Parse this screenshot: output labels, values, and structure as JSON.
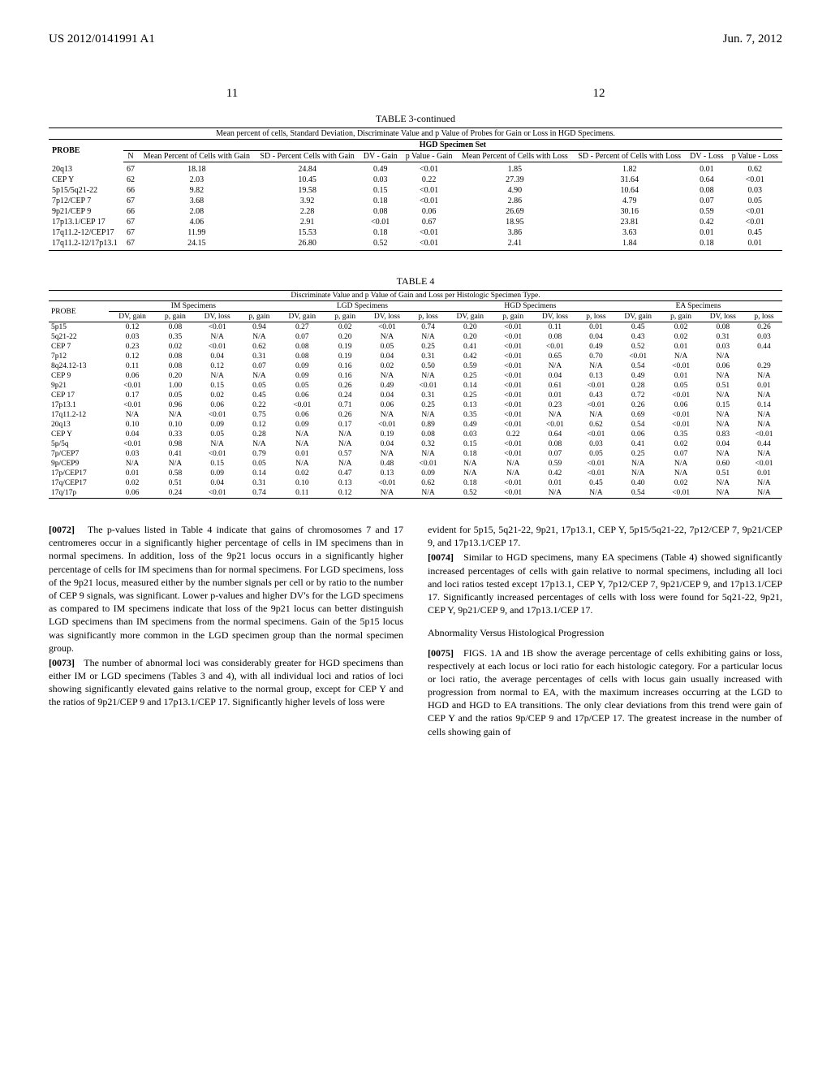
{
  "header": {
    "left": "US 2012/0141991 A1",
    "right": "Jun. 7, 2012"
  },
  "page_left": "11",
  "page_right": "12",
  "table3": {
    "caption": "TABLE 3-continued",
    "subcaption": "Mean percent of cells, Standard Deviation, Discriminate Value and p Value of Probes for Gain or Loss in HGD Specimens.",
    "group_header": "HGD Specimen Set",
    "cols": [
      "PROBE",
      "N",
      "Mean Percent of Cells with Gain",
      "SD - Percent Cells with Gain",
      "DV - Gain",
      "p Value - Gain",
      "Mean Percent of Cells with Loss",
      "SD - Percent of Cells with Loss",
      "DV - Loss",
      "p Value - Loss"
    ],
    "rows": [
      [
        "20q13",
        "67",
        "18.18",
        "24.84",
        "0.49",
        "<0.01",
        "1.85",
        "1.82",
        "0.01",
        "0.62"
      ],
      [
        "CEP Y",
        "62",
        "2.03",
        "10.45",
        "0.03",
        "0.22",
        "27.39",
        "31.64",
        "0.64",
        "<0.01"
      ],
      [
        "5p15/5q21-22",
        "66",
        "9.82",
        "19.58",
        "0.15",
        "<0.01",
        "4.90",
        "10.64",
        "0.08",
        "0.03"
      ],
      [
        "7p12/CEP 7",
        "67",
        "3.68",
        "3.92",
        "0.18",
        "<0.01",
        "2.86",
        "4.79",
        "0.07",
        "0.05"
      ],
      [
        "9p21/CEP 9",
        "66",
        "2.08",
        "2.28",
        "0.08",
        "0.06",
        "26.69",
        "30.16",
        "0.59",
        "<0.01"
      ],
      [
        "17p13.1/CEP 17",
        "67",
        "4.06",
        "2.91",
        "<0.01",
        "0.67",
        "18.95",
        "23.81",
        "0.42",
        "<0.01"
      ],
      [
        "17q11.2-12/CEP17",
        "67",
        "11.99",
        "15.53",
        "0.18",
        "<0.01",
        "3.86",
        "3.63",
        "0.01",
        "0.45"
      ],
      [
        "17q11.2-12/17p13.1",
        "67",
        "24.15",
        "26.80",
        "0.52",
        "<0.01",
        "2.41",
        "1.84",
        "0.18",
        "0.01"
      ]
    ]
  },
  "table4": {
    "caption": "TABLE 4",
    "subcaption": "Discriminate Value and p Value of Gain and Loss per Histologic Specimen Type.",
    "groups": [
      "IM Specimens",
      "LGD Specimens",
      "HGD Specimens",
      "EA Specimens"
    ],
    "subcols": [
      "DV, gain",
      "p, gain",
      "DV, loss",
      "p, gain",
      "DV, gain",
      "p, gain",
      "DV, loss",
      "p, loss",
      "DV, gain",
      "p, gain",
      "DV, loss",
      "p, loss",
      "DV, gain",
      "p, gain",
      "DV, loss",
      "p, loss"
    ],
    "probe_label": "PROBE",
    "rows": [
      [
        "5p15",
        "0.12",
        "0.08",
        "<0.01",
        "0.94",
        "0.27",
        "0.02",
        "<0.01",
        "0.74",
        "0.20",
        "<0.01",
        "0.11",
        "0.01",
        "0.45",
        "0.02",
        "0.08",
        "0.26"
      ],
      [
        "5q21-22",
        "0.03",
        "0.35",
        "N/A",
        "N/A",
        "0.07",
        "0.20",
        "N/A",
        "N/A",
        "0.20",
        "<0.01",
        "0.08",
        "0.04",
        "0.43",
        "0.02",
        "0.31",
        "0.03"
      ],
      [
        "CEP 7",
        "0.23",
        "0.02",
        "<0.01",
        "0.62",
        "0.08",
        "0.19",
        "0.05",
        "0.25",
        "0.41",
        "<0.01",
        "<0.01",
        "0.49",
        "0.52",
        "0.01",
        "0.03",
        "0.44"
      ],
      [
        "7p12",
        "0.12",
        "0.08",
        "0.04",
        "0.31",
        "0.08",
        "0.19",
        "0.04",
        "0.31",
        "0.42",
        "<0.01",
        "0.65",
        "0.70",
        "<0.01",
        "N/A",
        "N/A",
        ""
      ],
      [
        "8q24.12-13",
        "0.11",
        "0.08",
        "0.12",
        "0.07",
        "0.09",
        "0.16",
        "0.02",
        "0.50",
        "0.59",
        "<0.01",
        "N/A",
        "N/A",
        "0.54",
        "<0.01",
        "0.06",
        "0.29"
      ],
      [
        "CEP 9",
        "0.06",
        "0.20",
        "N/A",
        "N/A",
        "0.09",
        "0.16",
        "N/A",
        "N/A",
        "0.25",
        "<0.01",
        "0.04",
        "0.13",
        "0.49",
        "0.01",
        "N/A",
        "N/A"
      ],
      [
        "9p21",
        "<0.01",
        "1.00",
        "0.15",
        "0.05",
        "0.05",
        "0.26",
        "0.49",
        "<0.01",
        "0.14",
        "<0.01",
        "0.61",
        "<0.01",
        "0.28",
        "0.05",
        "0.51",
        "0.01"
      ],
      [
        "CEP 17",
        "0.17",
        "0.05",
        "0.02",
        "0.45",
        "0.06",
        "0.24",
        "0.04",
        "0.31",
        "0.25",
        "<0.01",
        "0.01",
        "0.43",
        "0.72",
        "<0.01",
        "N/A",
        "N/A"
      ],
      [
        "17p13.1",
        "<0.01",
        "0.96",
        "0.06",
        "0.22",
        "<0.01",
        "0.71",
        "0.06",
        "0.25",
        "0.13",
        "<0.01",
        "0.23",
        "<0.01",
        "0.26",
        "0.06",
        "0.15",
        "0.14"
      ],
      [
        "17q11.2-12",
        "N/A",
        "N/A",
        "<0.01",
        "0.75",
        "0.06",
        "0.26",
        "N/A",
        "N/A",
        "0.35",
        "<0.01",
        "N/A",
        "N/A",
        "0.69",
        "<0.01",
        "N/A",
        "N/A"
      ],
      [
        "20q13",
        "0.10",
        "0.10",
        "0.09",
        "0.12",
        "0.09",
        "0.17",
        "<0.01",
        "0.89",
        "0.49",
        "<0.01",
        "<0.01",
        "0.62",
        "0.54",
        "<0.01",
        "N/A",
        "N/A"
      ],
      [
        "CEP Y",
        "0.04",
        "0.33",
        "0.05",
        "0.28",
        "N/A",
        "N/A",
        "0.19",
        "0.08",
        "0.03",
        "0.22",
        "0.64",
        "<0.01",
        "0.06",
        "0.35",
        "0.83",
        "<0.01"
      ],
      [
        "5p/5q",
        "<0.01",
        "0.98",
        "N/A",
        "N/A",
        "N/A",
        "N/A",
        "0.04",
        "0.32",
        "0.15",
        "<0.01",
        "0.08",
        "0.03",
        "0.41",
        "0.02",
        "0.04",
        "0.44"
      ],
      [
        "7p/CEP7",
        "0.03",
        "0.41",
        "<0.01",
        "0.79",
        "0.01",
        "0.57",
        "N/A",
        "N/A",
        "0.18",
        "<0.01",
        "0.07",
        "0.05",
        "0.25",
        "0.07",
        "N/A",
        "N/A"
      ],
      [
        "9p/CEP9",
        "N/A",
        "N/A",
        "0.15",
        "0.05",
        "N/A",
        "N/A",
        "0.48",
        "<0.01",
        "N/A",
        "N/A",
        "0.59",
        "<0.01",
        "N/A",
        "N/A",
        "0.60",
        "<0.01"
      ],
      [
        "17p/CEP17",
        "0.01",
        "0.58",
        "0.09",
        "0.14",
        "0.02",
        "0.47",
        "0.13",
        "0.09",
        "N/A",
        "N/A",
        "0.42",
        "<0.01",
        "N/A",
        "N/A",
        "0.51",
        "0.01"
      ],
      [
        "17q/CEP17",
        "0.02",
        "0.51",
        "0.04",
        "0.31",
        "0.10",
        "0.13",
        "<0.01",
        "0.62",
        "0.18",
        "<0.01",
        "0.01",
        "0.45",
        "0.40",
        "0.02",
        "N/A",
        "N/A"
      ],
      [
        "17q/17p",
        "0.06",
        "0.24",
        "<0.01",
        "0.74",
        "0.11",
        "0.12",
        "N/A",
        "N/A",
        "0.52",
        "<0.01",
        "N/A",
        "N/A",
        "0.54",
        "<0.01",
        "N/A",
        "N/A"
      ]
    ]
  },
  "body": {
    "p72_num": "[0072]",
    "p72": "The p-values listed in Table 4 indicate that gains of chromosomes 7 and 17 centromeres occur in a significantly higher percentage of cells in IM specimens than in normal specimens. In addition, loss of the 9p21 locus occurs in a significantly higher percentage of cells for IM specimens than for normal specimens. For LGD specimens, loss of the 9p21 locus, measured either by the number signals per cell or by ratio to the number of CEP 9 signals, was significant. Lower p-values and higher DV's for the LGD specimens as compared to IM specimens indicate that loss of the 9p21 locus can better distinguish LGD specimens than IM specimens from the normal specimens. Gain of the 5p15 locus was significantly more common in the LGD specimen group than the normal specimen group.",
    "p73_num": "[0073]",
    "p73": "The number of abnormal loci was considerably greater for HGD specimens than either IM or LGD specimens (Tables 3 and 4), with all individual loci and ratios of loci showing significantly elevated gains relative to the normal group, except for CEP Y and the ratios of 9p21/CEP 9 and 17p13.1/CEP 17. Significantly higher levels of loss were",
    "p73b": "evident for 5p15, 5q21-22, 9p21, 17p13.1, CEP Y, 5p15/5q21-22, 7p12/CEP 7, 9p21/CEP 9, and 17p13.1/CEP 17.",
    "p74_num": "[0074]",
    "p74": "Similar to HGD specimens, many EA specimens (Table 4) showed significantly increased percentages of cells with gain relative to normal specimens, including all loci and loci ratios tested except 17p13.1, CEP Y, 7p12/CEP 7, 9p21/CEP 9, and 17p13.1/CEP 17. Significantly increased percentages of cells with loss were found for 5q21-22, 9p21, CEP Y, 9p21/CEP 9, and 17p13.1/CEP 17.",
    "sect": "Abnormality Versus Histological Progression",
    "p75_num": "[0075]",
    "p75": "FIGS. 1A and 1B show the average percentage of cells exhibiting gains or loss, respectively at each locus or loci ratio for each histologic category. For a particular locus or loci ratio, the average percentages of cells with locus gain usually increased with progression from normal to EA, with the maximum increases occurring at the LGD to HGD and HGD to EA transitions. The only clear deviations from this trend were gain of CEP Y and the ratios 9p/CEP 9 and 17p/CEP 17. The greatest increase in the number of cells showing gain of"
  }
}
